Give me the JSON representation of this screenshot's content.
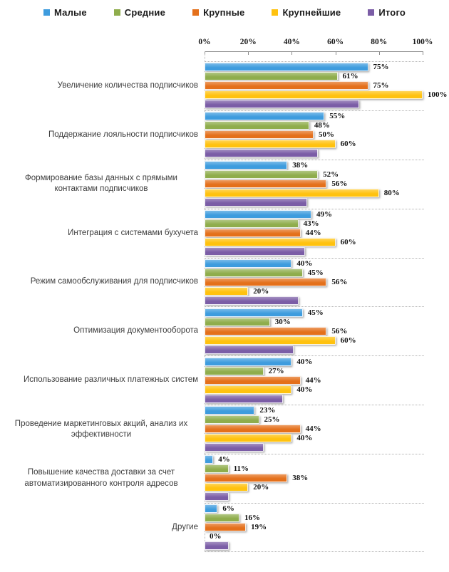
{
  "legend": {
    "items": [
      {
        "label": "Малые",
        "color": "#3E9CDE"
      },
      {
        "label": "Средние",
        "color": "#8FAD4C"
      },
      {
        "label": "Крупные",
        "color": "#E4701B"
      },
      {
        "label": "Крупнейшие",
        "color": "#FFC20F"
      },
      {
        "label": "Итого",
        "color": "#7B5DA6"
      }
    ]
  },
  "chart_data": {
    "type": "bar",
    "orientation": "horizontal",
    "title": "",
    "legend_position": "top",
    "value_axis": {
      "position": "top",
      "min": 0,
      "max": 100,
      "ticks": [
        "0%",
        "20%",
        "40%",
        "60%",
        "80%",
        "100%"
      ]
    },
    "grid": "dotted separators between category groups; dotted category axis",
    "label_format": "percent",
    "categories": [
      "Увеличение количества подписчиков",
      "Поддержание лояльности подписчиков",
      "Формирование базы данных с прямыми контактами подписчиков",
      "Интеграция с системами бухучета",
      "Режим самообслуживания для подписчиков",
      "Оптимизация документооборота",
      "Использование различных платежных систем",
      "Проведение  маркетинговых акций, анализ их эффективности",
      "Повышение качества доставки за счет автоматизированного контроля адресов",
      "Другие"
    ],
    "series": [
      {
        "name": "Малые",
        "color": "#3E9CDE",
        "values": [
          75,
          55,
          38,
          49,
          40,
          45,
          40,
          23,
          4,
          6
        ],
        "labels": [
          "75%",
          "55%",
          "38%",
          "49%",
          "40%",
          "45%",
          "40%",
          "23%",
          "4%",
          "6%"
        ],
        "labels_shown": true
      },
      {
        "name": "Средние",
        "color": "#8FAD4C",
        "values": [
          61,
          48,
          52,
          43,
          45,
          30,
          27,
          25,
          11,
          16
        ],
        "labels": [
          "61%",
          "48%",
          "52%",
          "43%",
          "45%",
          "30%",
          "27%",
          "25%",
          "11%",
          "16%"
        ],
        "labels_shown": true
      },
      {
        "name": "Крупные",
        "color": "#E4701B",
        "values": [
          75,
          50,
          56,
          44,
          56,
          56,
          44,
          44,
          38,
          19
        ],
        "labels": [
          "75%",
          "50%",
          "56%",
          "44%",
          "56%",
          "56%",
          "44%",
          "44%",
          "38%",
          "19%"
        ],
        "labels_shown": true
      },
      {
        "name": "Крупнейшие",
        "color": "#FFC20F",
        "values": [
          100,
          60,
          80,
          60,
          20,
          60,
          40,
          40,
          20,
          0
        ],
        "labels": [
          "100%",
          "60%",
          "80%",
          "60%",
          "20%",
          "60%",
          "40%",
          "40%",
          "20%",
          "0%"
        ],
        "labels_shown": true
      },
      {
        "name": "Итого",
        "color": "#7B5DA6",
        "values": [
          71,
          52,
          47,
          46,
          43,
          41,
          36,
          27,
          11,
          11
        ],
        "labels": [],
        "labels_shown": false
      }
    ]
  }
}
